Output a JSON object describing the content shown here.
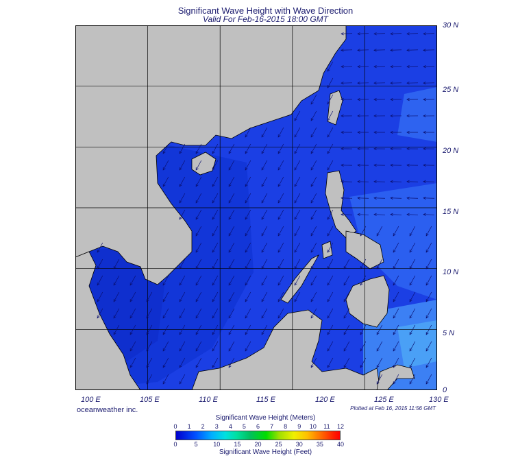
{
  "title": "Significant Wave Height with Wave Direction",
  "subtitle": "Valid For Feb-16-2015 18:00 GMT",
  "credit": "oceanweather inc.",
  "plotted": "Plotted at Feb 16, 2015 11:56 GMT",
  "lat_labels": [
    "30 N",
    "25 N",
    "20 N",
    "15 N",
    "10 N",
    "5 N",
    "0"
  ],
  "lon_labels": [
    "100 E",
    "105 E",
    "110 E",
    "115 E",
    "120 E",
    "125 E",
    "130 E"
  ],
  "colorbar": {
    "meters_title": "Significant Wave Height (Meters)",
    "feet_title": "Significant Wave Height (Feet)",
    "meters_ticks": [
      "0",
      "1",
      "2",
      "3",
      "4",
      "5",
      "6",
      "7",
      "8",
      "9",
      "10",
      "11",
      "12"
    ],
    "feet_ticks": [
      "0",
      "5",
      "10",
      "15",
      "20",
      "25",
      "30",
      "35",
      "40"
    ]
  },
  "colors": {
    "land": "#c0c0c0",
    "sea_low": "#0a14a8",
    "sea_mid": "#1a3fe6",
    "sea_high": "#3a7cf2",
    "arrow": "#0a0f6e"
  }
}
